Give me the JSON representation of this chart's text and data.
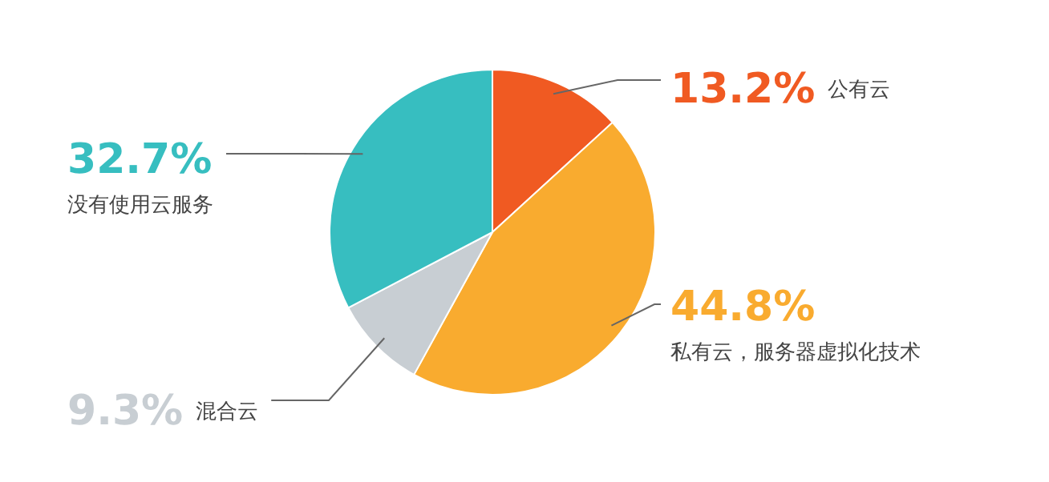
{
  "chart_data": {
    "type": "pie",
    "categories": [
      "公有云",
      "私有云，服务器虚拟化技术",
      "混合云",
      "没有使用云服务"
    ],
    "values": [
      13.2,
      44.8,
      9.3,
      32.7
    ],
    "value_labels": [
      "13.2%",
      "44.8%",
      "9.3%",
      "32.7%"
    ],
    "colors": [
      "#f05a22",
      "#f9ab2f",
      "#c8ced3",
      "#37bec0"
    ],
    "legend": false
  }
}
